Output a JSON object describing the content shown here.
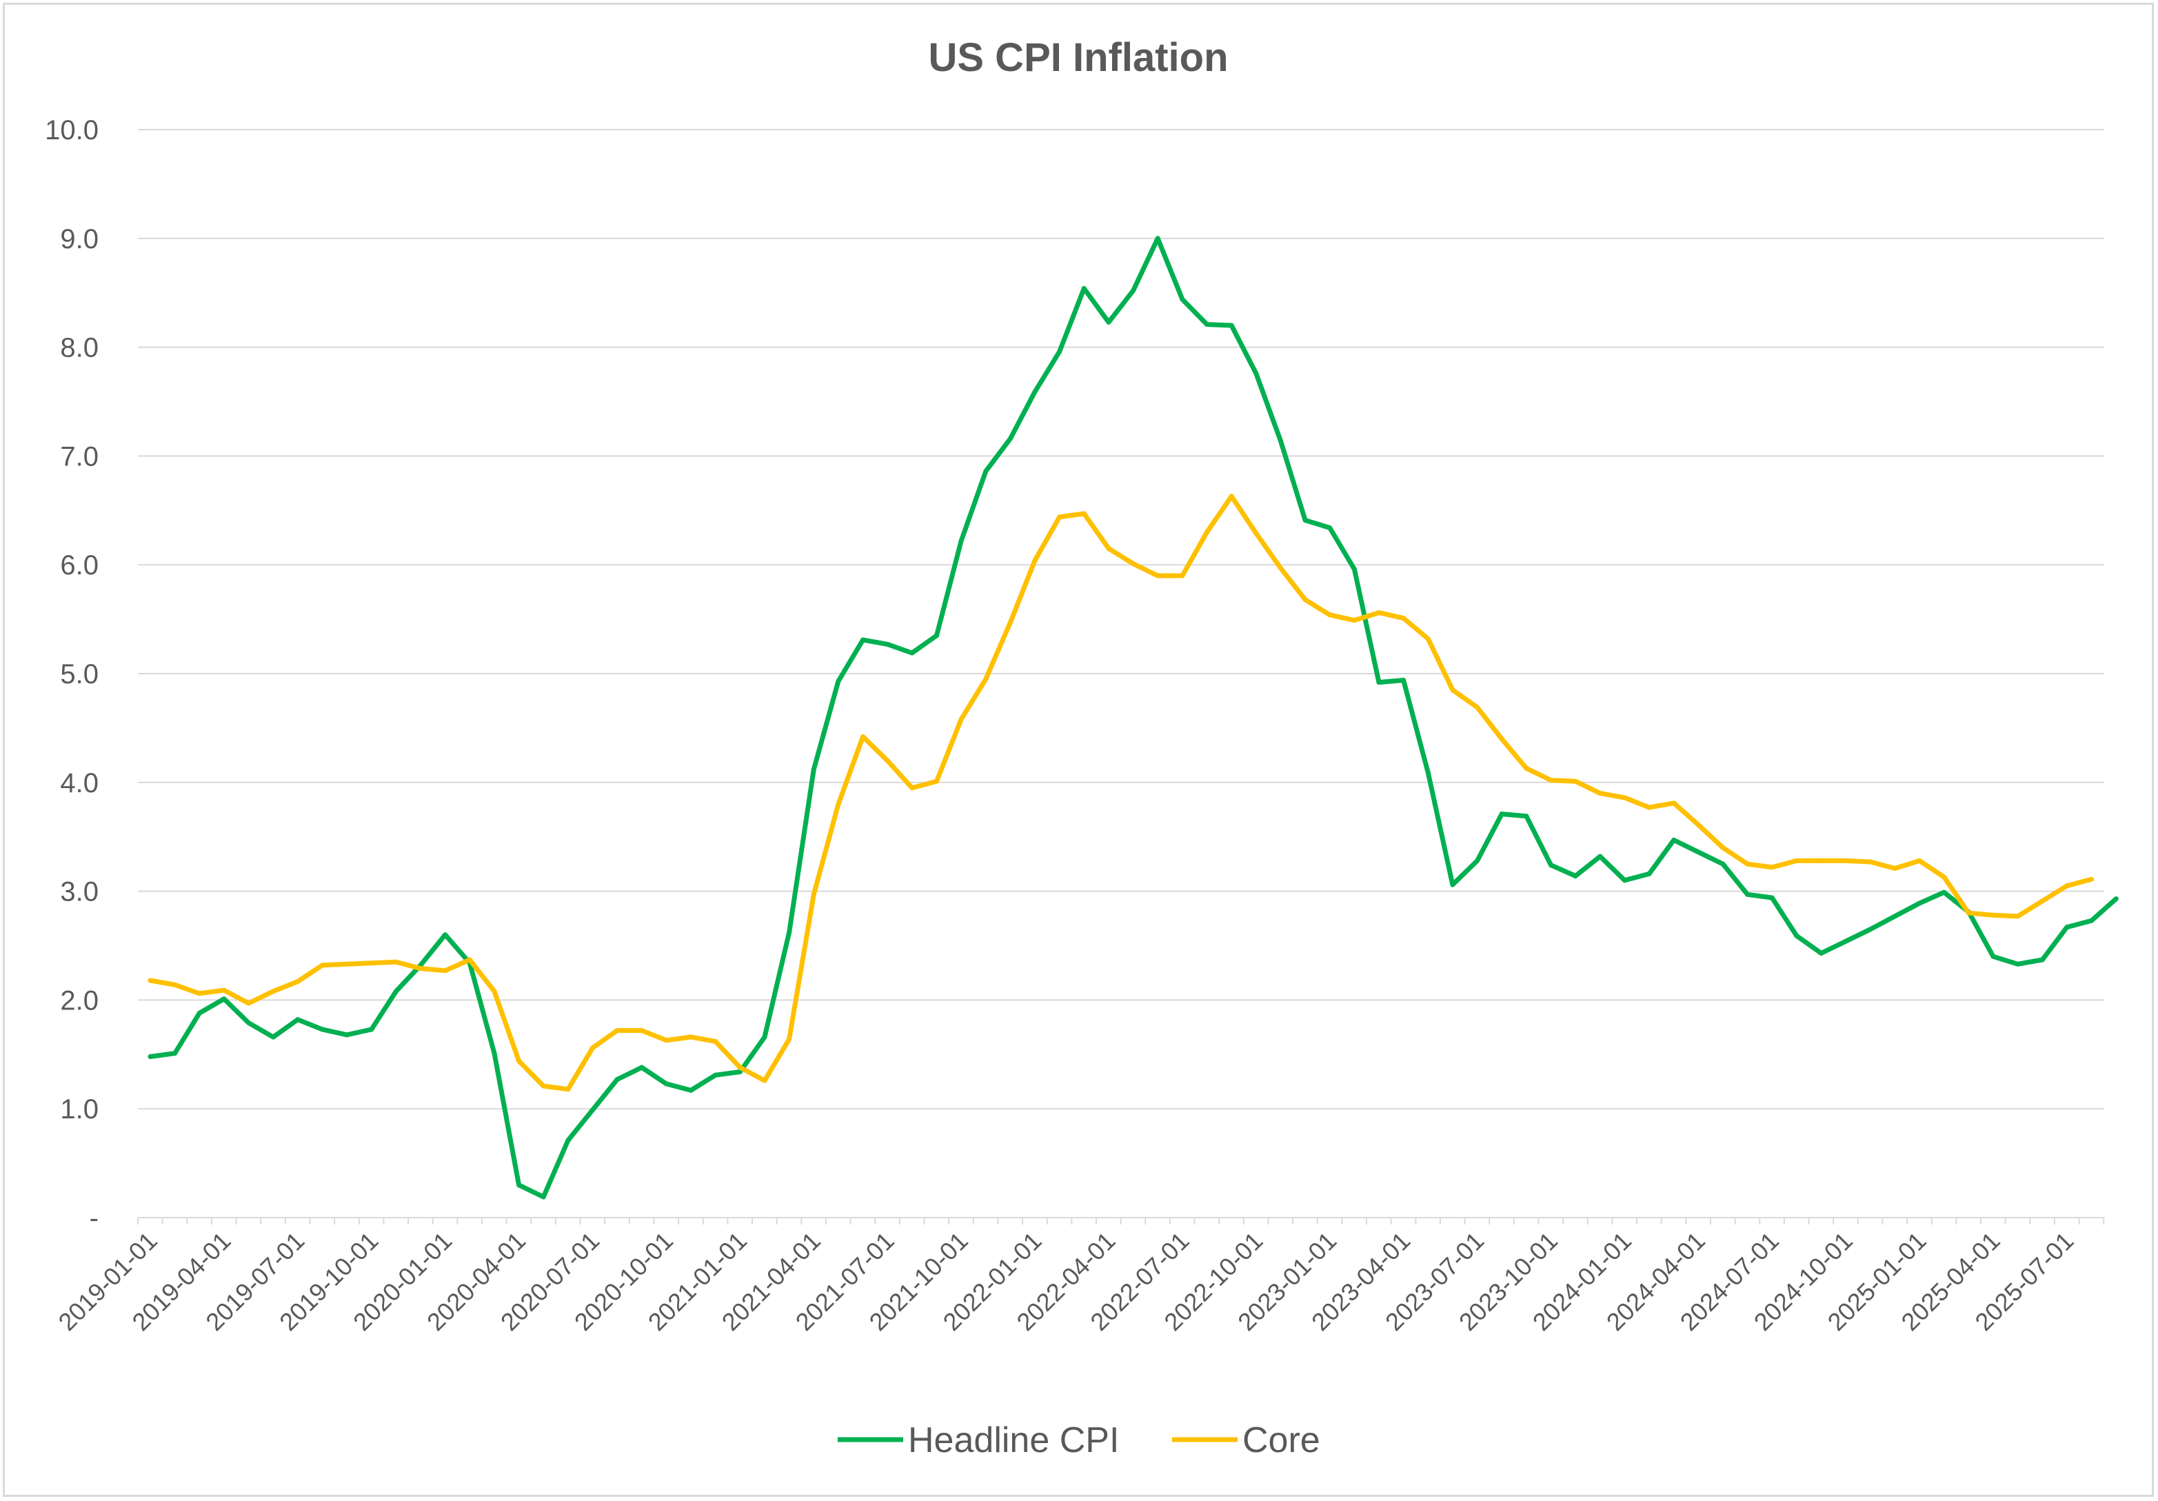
{
  "chart_data": {
    "type": "line",
    "title": "US CPI Inflation",
    "xlabel": "",
    "ylabel": "",
    "ylim": [
      0,
      10
    ],
    "y_ticks": [
      "-",
      "1.0",
      "2.0",
      "3.0",
      "4.0",
      "5.0",
      "6.0",
      "7.0",
      "8.0",
      "9.0",
      "10.0"
    ],
    "x_tick_labels": [
      "2019-01-01",
      "2019-04-01",
      "2019-07-01",
      "2019-10-01",
      "2020-01-01",
      "2020-04-01",
      "2020-07-01",
      "2020-10-01",
      "2021-01-01",
      "2021-04-01",
      "2021-07-01",
      "2021-10-01",
      "2022-01-01",
      "2022-04-01",
      "2022-07-01",
      "2022-10-01",
      "2023-01-01",
      "2023-04-01",
      "2023-07-01",
      "2023-10-01",
      "2024-01-01",
      "2024-04-01",
      "2024-07-01",
      "2024-10-01",
      "2025-01-01",
      "2025-04-01",
      "2025-07-01"
    ],
    "x_start": "2019-01",
    "grid": true,
    "legend_position": "bottom",
    "series": [
      {
        "name": "Headline CPI",
        "color": "#00b050",
        "values": [
          1.48,
          1.51,
          1.88,
          2.01,
          1.79,
          1.66,
          1.82,
          1.73,
          1.68,
          1.73,
          2.08,
          2.32,
          2.6,
          2.34,
          1.51,
          0.3,
          0.19,
          0.71,
          0.99,
          1.27,
          1.38,
          1.23,
          1.17,
          1.31,
          1.34,
          1.66,
          2.62,
          4.12,
          4.93,
          5.31,
          5.27,
          5.19,
          5.35,
          6.22,
          6.86,
          7.16,
          7.59,
          7.96,
          8.54,
          8.23,
          8.52,
          9.0,
          8.44,
          8.21,
          8.2,
          7.76,
          7.14,
          6.41,
          6.34,
          5.96,
          4.92,
          4.94,
          4.09,
          3.06,
          3.28,
          3.71,
          3.69,
          3.24,
          3.14,
          3.32,
          3.1,
          3.16,
          3.47,
          3.36,
          3.25,
          2.97,
          2.94,
          2.59,
          2.43,
          2.54,
          2.65,
          2.77,
          2.89,
          2.99,
          2.81,
          2.4,
          2.33,
          2.37,
          2.67,
          2.73,
          2.93
        ]
      },
      {
        "name": "Core",
        "color": "#ffc000",
        "values": [
          2.18,
          2.14,
          2.06,
          2.09,
          1.97,
          2.08,
          2.17,
          2.32,
          2.33,
          2.34,
          2.35,
          2.29,
          2.27,
          2.37,
          2.08,
          1.44,
          1.21,
          1.18,
          1.56,
          1.72,
          1.72,
          1.63,
          1.66,
          1.62,
          1.38,
          1.26,
          1.64,
          2.97,
          3.8,
          4.42,
          4.2,
          3.95,
          4.01,
          4.58,
          4.95,
          5.47,
          6.04,
          6.44,
          6.47,
          6.15,
          6.01,
          5.9,
          5.9,
          6.3,
          6.63,
          6.29,
          5.97,
          5.68,
          5.54,
          5.49,
          5.56,
          5.51,
          5.32,
          4.85,
          4.69,
          4.4,
          4.13,
          4.02,
          4.01,
          3.9,
          3.86,
          3.77,
          3.81,
          3.61,
          3.4,
          3.25,
          3.22,
          3.28,
          3.28,
          3.28,
          3.27,
          3.21,
          3.28,
          3.13,
          2.8,
          2.78,
          2.77,
          2.91,
          3.05,
          3.11
        ]
      }
    ]
  }
}
